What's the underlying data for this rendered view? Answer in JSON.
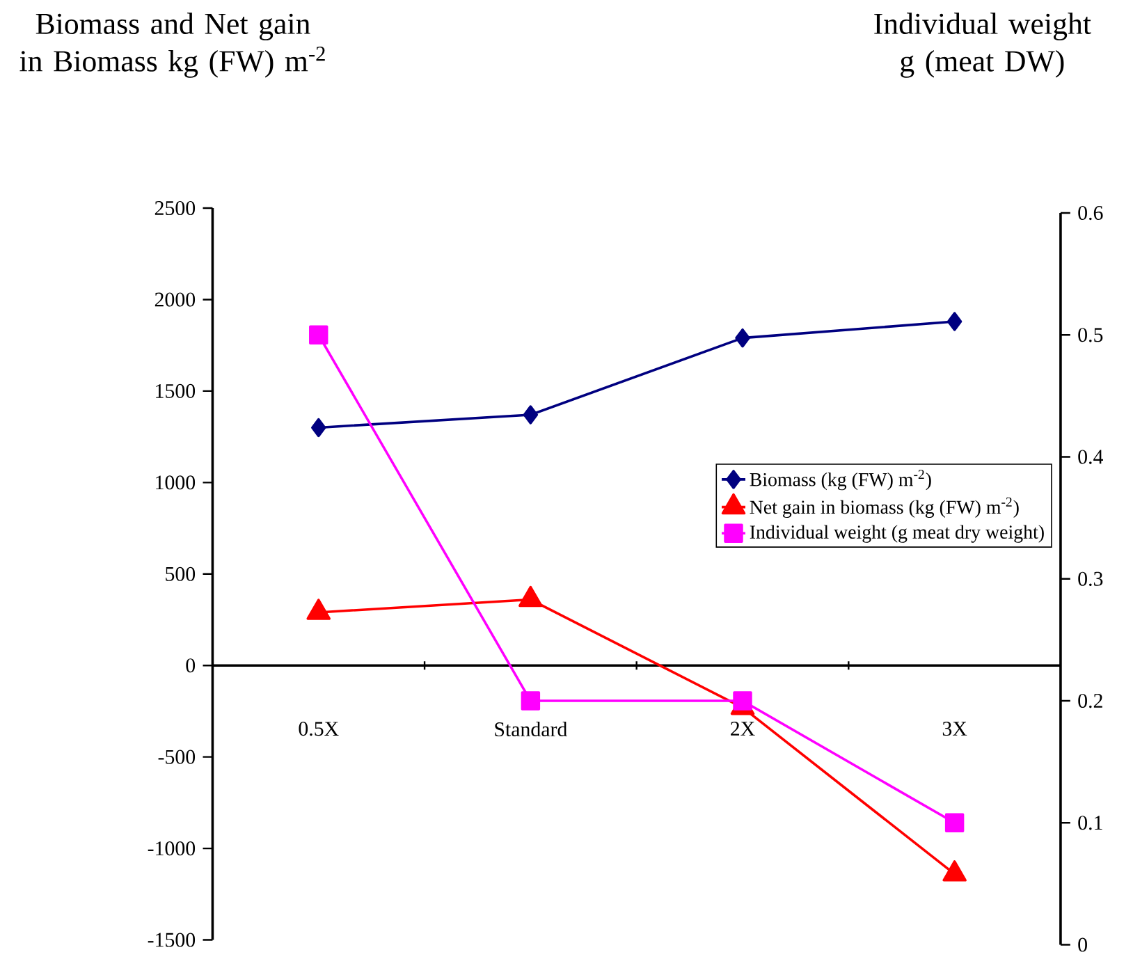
{
  "chart_data": {
    "type": "line",
    "categories": [
      "0.5X",
      "Standard",
      "2X",
      "3X"
    ],
    "ylabel": "Biomass and Net gain in Biomass kg (FW) m$^{-2}$",
    "y2label": "Individual weight g (meat DW)",
    "ylim": [
      -1500,
      2500
    ],
    "yticks": [
      -1500,
      -1000,
      -500,
      0,
      500,
      1000,
      1500,
      2000,
      2500
    ],
    "y2lim": [
      0,
      0.6
    ],
    "y2ticks": [
      0,
      0.1,
      0.2,
      0.3,
      0.4,
      0.5,
      0.6
    ],
    "legend": "right",
    "series": [
      {
        "name": "Biomass (kg (FW) m$^{-2}$)",
        "color": "#000080",
        "marker": "diamond",
        "values": [
          1300,
          1370,
          1790,
          1880
        ]
      },
      {
        "name": "Net gain in biomass (kg (FW) m$^{-2}$)",
        "color": "#ff0000",
        "marker": "triangle",
        "values": [
          290,
          360,
          -230,
          -1140
        ]
      },
      {
        "name": "Individual weight  (g meat dry weight)",
        "color": "#ff00ff",
        "marker": "square",
        "axis": "y2",
        "values": [
          0.5,
          0.2,
          0.2,
          0.1
        ]
      }
    ]
  }
}
